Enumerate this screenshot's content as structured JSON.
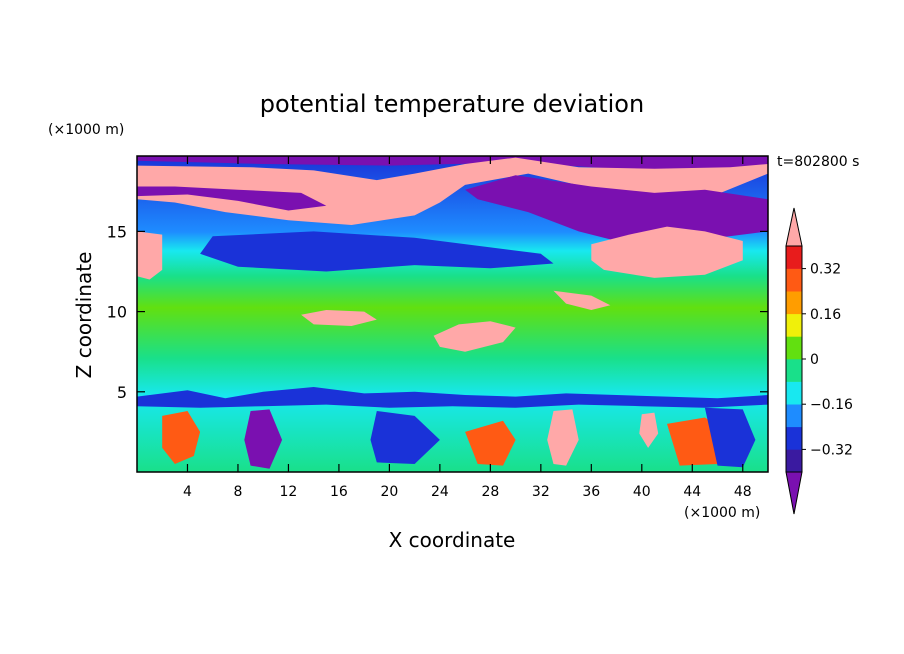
{
  "chart_data": {
    "type": "heatmap",
    "title": "potential temperature deviation",
    "xlabel": "X coordinate",
    "ylabel": "Z coordinate",
    "x_unit": "(×1000 m)",
    "y_unit": "(×1000 m)",
    "time_label": "t=802800 s",
    "xlim": [
      0,
      50
    ],
    "ylim": [
      0,
      19.7
    ],
    "x_ticks": [
      4,
      8,
      12,
      16,
      20,
      24,
      28,
      32,
      36,
      40,
      44,
      48
    ],
    "y_ticks": [
      5,
      10,
      15
    ],
    "colorbar": {
      "levels": [
        -0.4,
        -0.32,
        -0.24,
        -0.16,
        -0.08,
        0,
        0.08,
        0.16,
        0.24,
        0.32,
        0.4
      ],
      "tick_labels": [
        "0.32",
        "0.16",
        "0",
        "−0.16",
        "−0.32"
      ],
      "tick_values": [
        0.32,
        0.16,
        0,
        -0.16,
        -0.32
      ],
      "colors": [
        "#7a10b0",
        "#3a1aa0",
        "#1a32d8",
        "#1e8cff",
        "#18e8f0",
        "#19e08a",
        "#62e010",
        "#f0f00a",
        "#ff9d00",
        "#ff5a14",
        "#e81c1c",
        "#ffa8a8"
      ]
    },
    "regions": [
      {
        "value": -0.48,
        "xy": [
          [
            0,
            19.7
          ],
          [
            50,
            19.7
          ],
          [
            50,
            19.0
          ],
          [
            40,
            18.8
          ],
          [
            30,
            19.3
          ],
          [
            20,
            19.1
          ],
          [
            10,
            19.2
          ],
          [
            0,
            19.4
          ]
        ]
      },
      {
        "value": 0.48,
        "xy": [
          [
            0,
            19.1
          ],
          [
            9,
            19.0
          ],
          [
            14,
            18.8
          ],
          [
            19,
            18.2
          ],
          [
            22,
            18.6
          ],
          [
            26,
            19.2
          ],
          [
            30,
            19.6
          ],
          [
            35,
            19.0
          ],
          [
            41,
            18.9
          ],
          [
            47,
            19.0
          ],
          [
            50,
            19.2
          ],
          [
            50,
            18.6
          ],
          [
            45,
            17.0
          ],
          [
            40,
            16.8
          ],
          [
            36,
            17.7
          ],
          [
            31,
            18.6
          ],
          [
            26,
            17.9
          ],
          [
            24,
            16.8
          ],
          [
            22,
            16.0
          ],
          [
            17,
            15.4
          ],
          [
            12,
            15.7
          ],
          [
            7,
            16.2
          ],
          [
            3,
            16.8
          ],
          [
            0,
            17.0
          ]
        ]
      },
      {
        "value": -0.48,
        "xy": [
          [
            0,
            17.2
          ],
          [
            4,
            17.3
          ],
          [
            8,
            16.9
          ],
          [
            12,
            16.3
          ],
          [
            15,
            16.6
          ],
          [
            13,
            17.4
          ],
          [
            8,
            17.6
          ],
          [
            3,
            17.8
          ],
          [
            0,
            17.8
          ]
        ]
      },
      {
        "value": -0.48,
        "xy": [
          [
            30,
            18.5
          ],
          [
            36,
            17.8
          ],
          [
            41,
            17.4
          ],
          [
            45,
            17.6
          ],
          [
            50,
            17.0
          ],
          [
            50,
            15.0
          ],
          [
            45,
            14.5
          ],
          [
            40,
            14.0
          ],
          [
            35,
            15.0
          ],
          [
            31,
            16.2
          ],
          [
            27,
            17.0
          ],
          [
            26,
            17.6
          ]
        ]
      },
      {
        "value": 0.48,
        "xy": [
          [
            36,
            14.2
          ],
          [
            39,
            14.8
          ],
          [
            42,
            15.3
          ],
          [
            45,
            15.0
          ],
          [
            48,
            14.4
          ],
          [
            48,
            13.2
          ],
          [
            45,
            12.3
          ],
          [
            41,
            12.1
          ],
          [
            37,
            12.6
          ],
          [
            36,
            13.2
          ]
        ]
      },
      {
        "value": 0.48,
        "xy": [
          [
            0,
            15.0
          ],
          [
            2,
            14.8
          ],
          [
            2,
            12.6
          ],
          [
            1,
            12.0
          ],
          [
            0,
            12.2
          ]
        ]
      },
      {
        "value": -0.3,
        "xy": [
          [
            6,
            14.7
          ],
          [
            14,
            15.0
          ],
          [
            22,
            14.6
          ],
          [
            28,
            14.0
          ],
          [
            32,
            13.6
          ],
          [
            33,
            13.0
          ],
          [
            28,
            12.7
          ],
          [
            22,
            12.9
          ],
          [
            15,
            12.5
          ],
          [
            8,
            12.8
          ],
          [
            5,
            13.6
          ]
        ]
      },
      {
        "value": 0.48,
        "xy": [
          [
            13,
            9.8
          ],
          [
            15,
            10.1
          ],
          [
            18,
            10.0
          ],
          [
            19,
            9.5
          ],
          [
            17,
            9.1
          ],
          [
            14,
            9.2
          ]
        ]
      },
      {
        "value": 0.48,
        "xy": [
          [
            23.5,
            8.5
          ],
          [
            25.5,
            9.2
          ],
          [
            28,
            9.4
          ],
          [
            30,
            9.0
          ],
          [
            29,
            8.1
          ],
          [
            26,
            7.5
          ],
          [
            24,
            7.8
          ]
        ]
      },
      {
        "value": 0.48,
        "xy": [
          [
            33,
            11.3
          ],
          [
            36,
            11.0
          ],
          [
            37.5,
            10.4
          ],
          [
            36,
            10.1
          ],
          [
            34,
            10.5
          ]
        ]
      },
      {
        "value": -0.3,
        "xy": [
          [
            0,
            4.7
          ],
          [
            4,
            5.1
          ],
          [
            7,
            4.6
          ],
          [
            10,
            5.0
          ],
          [
            14,
            5.3
          ],
          [
            18,
            4.9
          ],
          [
            22,
            5.0
          ],
          [
            26,
            4.8
          ],
          [
            30,
            4.7
          ],
          [
            34,
            4.9
          ],
          [
            38,
            4.8
          ],
          [
            42,
            4.7
          ],
          [
            46,
            4.6
          ],
          [
            50,
            4.8
          ],
          [
            50,
            4.2
          ],
          [
            45,
            4.0
          ],
          [
            40,
            4.1
          ],
          [
            35,
            4.2
          ],
          [
            30,
            4.0
          ],
          [
            25,
            4.1
          ],
          [
            20,
            4.0
          ],
          [
            15,
            4.2
          ],
          [
            10,
            4.1
          ],
          [
            5,
            4.0
          ],
          [
            0,
            4.1
          ]
        ]
      },
      {
        "value": 0.3,
        "xy": [
          [
            2,
            3.5
          ],
          [
            4,
            3.8
          ],
          [
            5,
            2.5
          ],
          [
            4.5,
            1.0
          ],
          [
            3,
            0.5
          ],
          [
            2,
            1.5
          ]
        ]
      },
      {
        "value": -0.48,
        "xy": [
          [
            9,
            3.8
          ],
          [
            10.5,
            3.9
          ],
          [
            11.5,
            2.0
          ],
          [
            10.5,
            0.2
          ],
          [
            9,
            0.4
          ],
          [
            8.5,
            2.0
          ]
        ]
      },
      {
        "value": -0.3,
        "xy": [
          [
            19,
            3.8
          ],
          [
            22,
            3.5
          ],
          [
            24,
            2.0
          ],
          [
            22,
            0.5
          ],
          [
            19,
            0.6
          ],
          [
            18.5,
            2.0
          ]
        ]
      },
      {
        "value": 0.3,
        "xy": [
          [
            26,
            2.5
          ],
          [
            29,
            3.2
          ],
          [
            30,
            2.0
          ],
          [
            29,
            0.4
          ],
          [
            27,
            0.5
          ]
        ]
      },
      {
        "value": 0.48,
        "xy": [
          [
            33,
            3.8
          ],
          [
            34.5,
            3.9
          ],
          [
            35,
            2.0
          ],
          [
            34,
            0.4
          ],
          [
            33,
            0.5
          ],
          [
            32.5,
            2.0
          ]
        ]
      },
      {
        "value": 0.3,
        "xy": [
          [
            42,
            3.0
          ],
          [
            45,
            3.4
          ],
          [
            47,
            2.4
          ],
          [
            46,
            0.5
          ],
          [
            43,
            0.4
          ]
        ]
      },
      {
        "value": 0.48,
        "xy": [
          [
            40,
            3.6
          ],
          [
            41,
            3.7
          ],
          [
            41.3,
            2.4
          ],
          [
            40.5,
            1.5
          ],
          [
            39.8,
            2.4
          ]
        ]
      },
      {
        "value": -0.3,
        "xy": [
          [
            45,
            4.0
          ],
          [
            48,
            3.9
          ],
          [
            49,
            2.0
          ],
          [
            48,
            0.3
          ],
          [
            46,
            0.4
          ]
        ]
      }
    ]
  }
}
